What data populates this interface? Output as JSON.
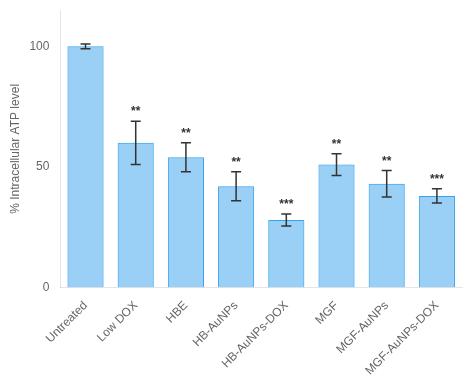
{
  "chart_data": {
    "type": "bar",
    "categories": [
      "Untreated",
      "Low DOX",
      "HBE",
      "HB-AuNPs",
      "HB-AuNPs-DOX",
      "MGF",
      "MGF-AuNPs",
      "MGF-AuNPs-DOX"
    ],
    "values": [
      100,
      60,
      54,
      42,
      28,
      51,
      43,
      38
    ],
    "errors": [
      1.0,
      9,
      6,
      6,
      2.5,
      4.5,
      5.5,
      3.0
    ],
    "significance": [
      null,
      "**",
      "**",
      "**",
      "***",
      "**",
      "**",
      "***"
    ],
    "ylabel": "% Intracellular ATP level",
    "ylim": [
      0,
      115
    ],
    "yticks": [
      0,
      50,
      100
    ],
    "grid": false
  }
}
